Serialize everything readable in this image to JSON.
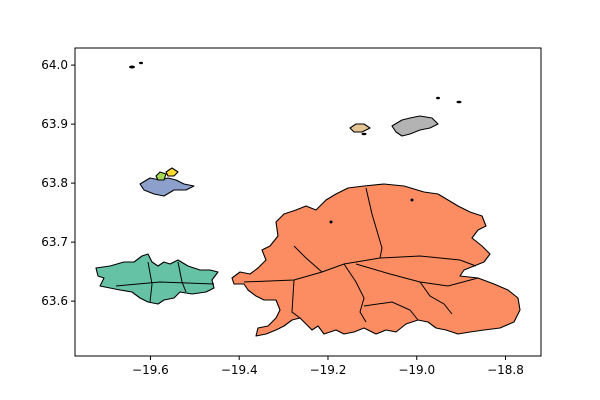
{
  "chart_data": {
    "type": "map",
    "title": "",
    "xlabel": "",
    "ylabel": "",
    "xlim": [
      -19.77,
      -18.72
    ],
    "ylim": [
      63.507,
      64.029
    ],
    "x_ticks": [
      -19.6,
      -19.4,
      -19.2,
      -19.0,
      -18.8
    ],
    "x_tick_labels": [
      "−19.6",
      "−19.4",
      "−19.2",
      "−19.0",
      "−18.8"
    ],
    "y_ticks": [
      63.6,
      63.7,
      63.8,
      63.9,
      64.0
    ],
    "y_tick_labels": [
      "63.6",
      "63.7",
      "63.8",
      "63.9",
      "64.0"
    ],
    "grid": false,
    "legend": "none",
    "colors": {
      "large_eastern_region": "#fc8d62",
      "southwestern_region": "#66c2a5",
      "middle_western_region": "#8da0cb",
      "small_green_patch": "#a6d854",
      "small_yellow_patch": "#ffd92f",
      "northern_tan_region": "#e5c494",
      "northeastern_gray_region": "#b3b3b3",
      "tiny_islands": "#000000"
    }
  }
}
